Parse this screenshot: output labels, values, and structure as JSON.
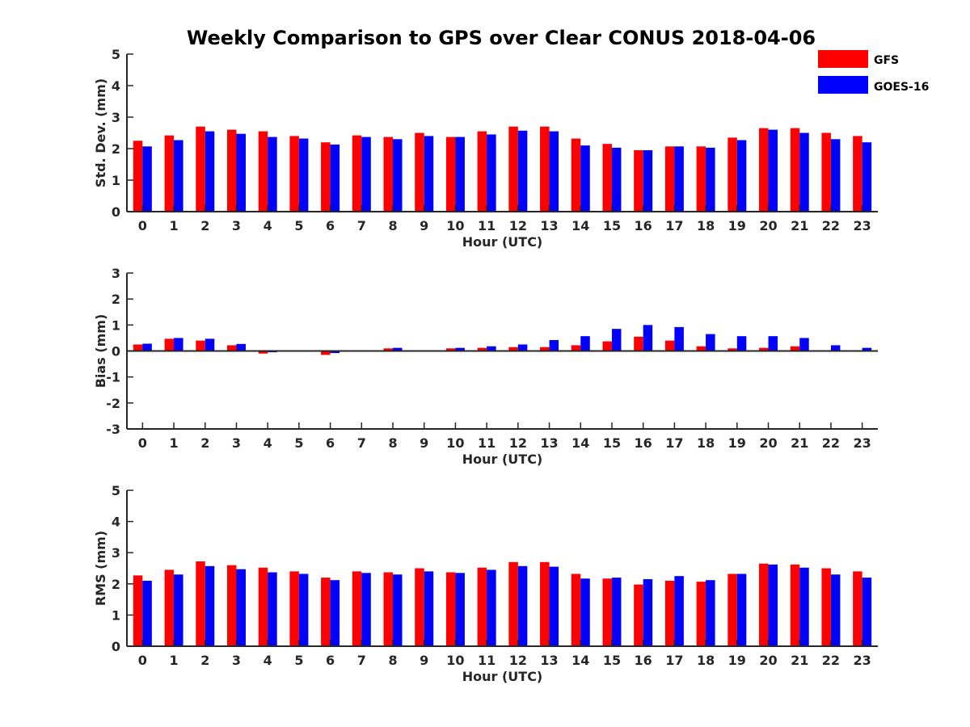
{
  "chart_data": {
    "type": "bar",
    "title": "Weekly Comparison to GPS over Clear CONUS 2018-04-06",
    "legend": {
      "placement": "top-right",
      "entries": [
        {
          "name": "GFS",
          "color": "#ff0000"
        },
        {
          "name": "GOES-16",
          "color": "#0000ff"
        }
      ]
    },
    "categories": [
      "0",
      "1",
      "2",
      "3",
      "4",
      "5",
      "6",
      "7",
      "8",
      "9",
      "10",
      "11",
      "12",
      "13",
      "14",
      "15",
      "16",
      "17",
      "18",
      "19",
      "20",
      "21",
      "22",
      "23"
    ],
    "grid": false,
    "panels": [
      {
        "xlabel": "Hour (UTC)",
        "ylabel": "Std. Dev. (mm)",
        "ylim": [
          0,
          5
        ],
        "yticks": [
          "0",
          "1",
          "2",
          "3",
          "4",
          "5"
        ],
        "series": [
          {
            "name": "GFS",
            "values": [
              2.25,
              2.42,
              2.7,
              2.6,
              2.55,
              2.4,
              2.2,
              2.42,
              2.37,
              2.5,
              2.37,
              2.55,
              2.7,
              2.7,
              2.32,
              2.15,
              1.95,
              2.07,
              2.07,
              2.35,
              2.65,
              2.65,
              2.5,
              2.4
            ]
          },
          {
            "name": "GOES-16",
            "values": [
              2.07,
              2.27,
              2.55,
              2.47,
              2.37,
              2.32,
              2.13,
              2.37,
              2.3,
              2.4,
              2.37,
              2.45,
              2.57,
              2.55,
              2.1,
              2.03,
              1.95,
              2.07,
              2.03,
              2.27,
              2.6,
              2.5,
              2.3,
              2.2
            ]
          }
        ]
      },
      {
        "xlabel": "Hour (UTC)",
        "ylabel": "Bias (mm)",
        "ylim": [
          -3,
          3
        ],
        "yticks": [
          "-3",
          "-2",
          "-1",
          "0",
          "1",
          "2",
          "3"
        ],
        "series": [
          {
            "name": "GFS",
            "values": [
              0.25,
              0.47,
              0.4,
              0.22,
              -0.1,
              -0.03,
              -0.15,
              0,
              0.1,
              0,
              0.1,
              0.12,
              0.15,
              0.15,
              0.22,
              0.37,
              0.55,
              0.4,
              0.18,
              0.1,
              0.12,
              0.18,
              0.03,
              0.02
            ]
          },
          {
            "name": "GOES-16",
            "values": [
              0.28,
              0.5,
              0.47,
              0.27,
              -0.05,
              -0.03,
              -0.08,
              0,
              0.12,
              0.02,
              0.12,
              0.18,
              0.25,
              0.42,
              0.57,
              0.85,
              1.0,
              0.92,
              0.65,
              0.57,
              0.57,
              0.5,
              0.22,
              0.12
            ]
          }
        ]
      },
      {
        "xlabel": "Hour (UTC)",
        "ylabel": "RMS (mm)",
        "ylim": [
          0,
          5
        ],
        "yticks": [
          "0",
          "1",
          "2",
          "3",
          "4",
          "5"
        ],
        "series": [
          {
            "name": "GFS",
            "values": [
              2.27,
              2.45,
              2.72,
              2.6,
              2.52,
              2.4,
              2.2,
              2.4,
              2.37,
              2.5,
              2.37,
              2.52,
              2.7,
              2.7,
              2.32,
              2.17,
              1.98,
              2.1,
              2.07,
              2.32,
              2.65,
              2.62,
              2.5,
              2.4
            ]
          },
          {
            "name": "GOES-16",
            "values": [
              2.1,
              2.3,
              2.57,
              2.47,
              2.37,
              2.32,
              2.12,
              2.35,
              2.3,
              2.4,
              2.35,
              2.45,
              2.57,
              2.55,
              2.17,
              2.2,
              2.15,
              2.25,
              2.12,
              2.32,
              2.62,
              2.52,
              2.3,
              2.2
            ]
          }
        ]
      }
    ]
  }
}
